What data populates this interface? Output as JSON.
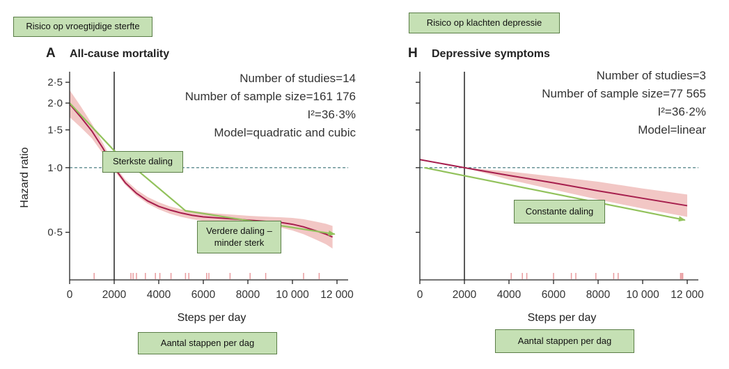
{
  "chart_data": [
    {
      "type": "line",
      "panel_letter": "A",
      "title": "All-cause mortality",
      "xlabel": "Steps per day",
      "ylabel": "Hazard ratio",
      "x_ticks": [
        0,
        2000,
        4000,
        6000,
        8000,
        10000,
        12000
      ],
      "x_tick_labels": [
        "0",
        "2000",
        "4000",
        "6000",
        "8000",
        "10 000",
        "12 000"
      ],
      "y_ticks": [
        0.5,
        1.0,
        1.5,
        2.0,
        2.5
      ],
      "y_tick_labels": [
        "0·5",
        "1·0",
        "1·5",
        "2·0",
        "2·5"
      ],
      "xlim": [
        0,
        12500
      ],
      "ylim": [
        0.3,
        2.8
      ],
      "y_scale": "log",
      "stats": [
        "Number of studies=14",
        "Number of sample size=161 176",
        "I²=36·3%",
        "Model=quadratic and cubic"
      ],
      "reference_x": 2000,
      "reference_y": 1.0,
      "series": [
        {
          "x": [
            0,
            500,
            1000,
            1500,
            2000,
            2500,
            3000,
            3500,
            4000,
            4500,
            5000,
            5500,
            6000,
            6500,
            7000,
            7500,
            8000,
            8500,
            9000,
            9500,
            10000,
            10500,
            11000,
            11500,
            11800
          ],
          "values": [
            1.98,
            1.72,
            1.48,
            1.23,
            1.0,
            0.85,
            0.76,
            0.7,
            0.66,
            0.635,
            0.615,
            0.6,
            0.59,
            0.585,
            0.58,
            0.575,
            0.57,
            0.565,
            0.56,
            0.555,
            0.545,
            0.53,
            0.51,
            0.49,
            0.475
          ],
          "lower": [
            1.72,
            1.54,
            1.37,
            1.16,
            0.97,
            0.83,
            0.74,
            0.68,
            0.64,
            0.61,
            0.59,
            0.575,
            0.565,
            0.56,
            0.555,
            0.55,
            0.545,
            0.54,
            0.535,
            0.525,
            0.51,
            0.49,
            0.465,
            0.44,
            0.42
          ],
          "upper": [
            2.3,
            1.93,
            1.6,
            1.3,
            1.03,
            0.88,
            0.79,
            0.73,
            0.69,
            0.66,
            0.64,
            0.63,
            0.62,
            0.612,
            0.607,
            0.602,
            0.597,
            0.593,
            0.59,
            0.587,
            0.583,
            0.575,
            0.562,
            0.548,
            0.535
          ]
        }
      ],
      "rug": [
        1100,
        2750,
        2850,
        3000,
        3400,
        3850,
        4050,
        4550,
        5200,
        5350,
        6150,
        6250,
        7200,
        8100,
        8800,
        10500,
        11200
      ],
      "trend_arrow": {
        "x": [
          0,
          2000,
          5200,
          11900
        ],
        "y": [
          2.0,
          1.2,
          0.63,
          0.49
        ]
      },
      "colors": {
        "line": "#a61e4d",
        "band": "#f2c7c5",
        "reference": "#5b8a8e",
        "rug": "#e89a9e",
        "arrow": "#92c25c"
      },
      "annotations": {
        "category": "Risico op vroegtijdige sterfte",
        "steepest": "Sterkste daling",
        "further": "Verdere daling – minder sterk",
        "xaxis": "Aantal stappen per dag"
      }
    },
    {
      "type": "line",
      "panel_letter": "H",
      "title": "Depressive symptoms",
      "xlabel": "Steps per day",
      "x_ticks": [
        0,
        2000,
        4000,
        6000,
        8000,
        10000,
        12000
      ],
      "x_tick_labels": [
        "0",
        "2000",
        "4000",
        "6000",
        "8000",
        "10 000",
        "12 000"
      ],
      "xlim": [
        0,
        12500
      ],
      "ylim": [
        0.3,
        2.8
      ],
      "y_scale": "log",
      "stats": [
        "Number of studies=3",
        "Number of sample size=77 565",
        "I²=36·2%",
        "Model=linear"
      ],
      "reference_x": 2000,
      "reference_y": 1.0,
      "series": [
        {
          "x": [
            0,
            2000,
            4000,
            6000,
            8000,
            10000,
            12000
          ],
          "values": [
            1.09,
            1.0,
            0.92,
            0.85,
            0.78,
            0.72,
            0.665
          ],
          "lower": [
            1.09,
            1.0,
            0.88,
            0.79,
            0.71,
            0.645,
            0.59
          ],
          "upper": [
            1.09,
            1.0,
            0.96,
            0.91,
            0.86,
            0.8,
            0.75
          ]
        }
      ],
      "rug": [
        4100,
        4600,
        4800,
        6000,
        6800,
        7000,
        7900,
        8700,
        8900,
        11700,
        11750,
        11800
      ],
      "trend_arrow": {
        "x": [
          200,
          11900
        ],
        "y": [
          1.0,
          0.57
        ]
      },
      "colors": {
        "line": "#a61e4d",
        "band": "#f2c7c5",
        "reference": "#5b8a8e",
        "rug": "#e89a9e",
        "arrow": "#92c25c"
      },
      "annotations": {
        "category": "Risico op klachten depressie",
        "constant": "Constante daling",
        "xaxis": "Aantal stappen per dag"
      }
    }
  ]
}
